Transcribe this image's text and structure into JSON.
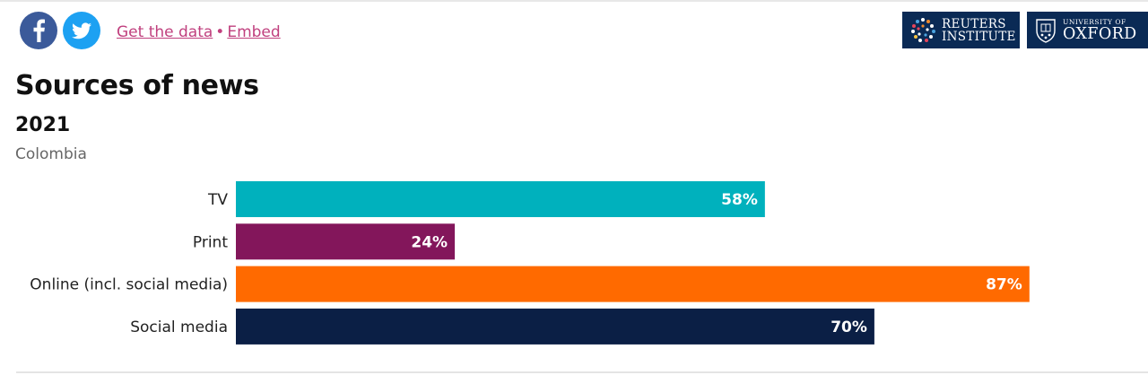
{
  "links": {
    "get_data": "Get the data",
    "separator": "•",
    "embed": "Embed"
  },
  "logos": {
    "reuters_line1": "REUTERS",
    "reuters_line2": "INSTITUTE",
    "oxford_line1": "UNIVERSITY OF",
    "oxford_line2": "OXFORD"
  },
  "icons": [
    "facebook-icon",
    "twitter-icon",
    "reuters-globe-icon",
    "oxford-crest-icon"
  ],
  "colors": {
    "tv": "#00b1bd",
    "print": "#83165b",
    "online": "#ff6a00",
    "social": "#0b1f45",
    "link": "#c0407e",
    "logo_bg": "#0a2a55"
  },
  "chart_data": {
    "type": "bar",
    "orientation": "horizontal",
    "title": "Sources of news",
    "subtitle": "2021",
    "region": "Colombia",
    "categories": [
      "TV",
      "Print",
      "Online (incl. social media)",
      "Social media"
    ],
    "values": [
      58,
      24,
      87,
      70
    ],
    "value_labels": [
      "58%",
      "24%",
      "87%",
      "70%"
    ],
    "bar_colors": [
      "#00b1bd",
      "#83165b",
      "#ff6a00",
      "#0b1f45"
    ],
    "xlim": [
      0,
      100
    ],
    "grid": false
  }
}
